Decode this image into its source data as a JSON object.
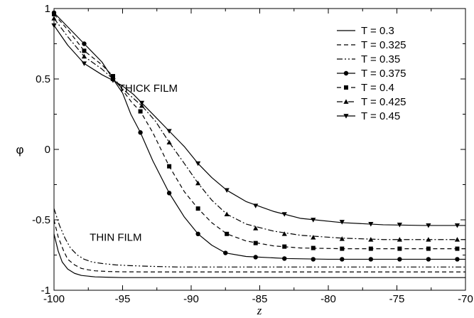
{
  "chart_data": {
    "type": "line",
    "xlabel": "z",
    "ylabel": "φ",
    "xlim": [
      -100,
      -70
    ],
    "ylim": [
      -1,
      1
    ],
    "xticks": [
      -100,
      -95,
      -90,
      -85,
      -80,
      -75,
      -70
    ],
    "yticks": [
      -1,
      -0.5,
      0,
      0.5,
      1
    ],
    "xtick_labels": [
      "-100",
      "-95",
      "-90",
      "-85",
      "-80",
      "-75",
      "-70"
    ],
    "ytick_labels": [
      "-1",
      "-0.5",
      "0",
      "0.5",
      "1"
    ],
    "legend_position": "top-right",
    "grid": false,
    "annotations": [
      {
        "text": "THICK FILM",
        "x": -95.3,
        "y": 0.41
      },
      {
        "text": "THIN FILM",
        "x": -97.4,
        "y": -0.65
      }
    ],
    "series": [
      {
        "name": "T = 0.3",
        "style": "solid",
        "marker": "none",
        "x": [
          -100,
          -99.7,
          -99.4,
          -99,
          -98.5,
          -98,
          -97.5,
          -97,
          -96,
          -95,
          -93,
          -90,
          -85,
          -80,
          -75,
          -70
        ],
        "y": [
          -0.6,
          -0.72,
          -0.8,
          -0.85,
          -0.88,
          -0.895,
          -0.9,
          -0.905,
          -0.908,
          -0.91,
          -0.91,
          -0.91,
          -0.91,
          -0.91,
          -0.91,
          -0.91
        ]
      },
      {
        "name": "T = 0.325",
        "style": "dashed",
        "marker": "none",
        "x": [
          -100,
          -99.7,
          -99.3,
          -99,
          -98.5,
          -98,
          -97.5,
          -97,
          -96,
          -95,
          -93,
          -90,
          -85,
          -80,
          -75,
          -70
        ],
        "y": [
          -0.5,
          -0.62,
          -0.72,
          -0.78,
          -0.82,
          -0.845,
          -0.855,
          -0.862,
          -0.867,
          -0.869,
          -0.87,
          -0.87,
          -0.87,
          -0.87,
          -0.87,
          -0.87
        ]
      },
      {
        "name": "T = 0.35",
        "style": "dashdotdot",
        "marker": "none",
        "x": [
          -100,
          -99.6,
          -99.2,
          -98.8,
          -98.3,
          -97.8,
          -97.2,
          -96.5,
          -95.5,
          -94.5,
          -93,
          -91,
          -88,
          -85,
          -80,
          -75,
          -70
        ],
        "y": [
          -0.42,
          -0.54,
          -0.63,
          -0.7,
          -0.75,
          -0.78,
          -0.8,
          -0.81,
          -0.82,
          -0.825,
          -0.83,
          -0.835,
          -0.835,
          -0.835,
          -0.835,
          -0.835,
          -0.835
        ]
      },
      {
        "name": "T = 0.375",
        "style": "solid",
        "marker": "circle",
        "x": [
          -100,
          -99,
          -97.8,
          -96.5,
          -95.7,
          -95,
          -94.4,
          -93.7,
          -92.8,
          -91.6,
          -90.5,
          -89.5,
          -88.5,
          -87.5,
          -86,
          -83,
          -80,
          -77,
          -74,
          -70
        ],
        "y": [
          0.97,
          0.87,
          0.75,
          0.62,
          0.5,
          0.4,
          0.25,
          0.12,
          -0.08,
          -0.31,
          -0.48,
          -0.6,
          -0.68,
          -0.735,
          -0.76,
          -0.775,
          -0.78,
          -0.78,
          -0.78,
          -0.78
        ],
        "marker_x": [
          -100,
          -97.8,
          -95.7,
          -93.7,
          -91.6,
          -89.5,
          -87.5,
          -85.3,
          -83.2,
          -81.1,
          -79,
          -76.9,
          -74.8,
          -72.7,
          -70.6
        ],
        "marker_y": [
          0.97,
          0.75,
          0.5,
          0.12,
          -0.31,
          -0.6,
          -0.735,
          -0.765,
          -0.775,
          -0.78,
          -0.78,
          -0.78,
          -0.78,
          -0.78,
          -0.78
        ]
      },
      {
        "name": "T = 0.4",
        "style": "dashed",
        "marker": "square",
        "x": [
          -100,
          -99,
          -97.8,
          -96.5,
          -95.7,
          -95,
          -94.3,
          -93.7,
          -92.8,
          -91.6,
          -90.5,
          -89.5,
          -88.5,
          -87.4,
          -86,
          -84,
          -82,
          -79,
          -76,
          -73,
          -70
        ],
        "y": [
          0.96,
          0.85,
          0.7,
          0.6,
          0.52,
          0.42,
          0.33,
          0.27,
          0.12,
          -0.12,
          -0.3,
          -0.42,
          -0.52,
          -0.6,
          -0.65,
          -0.685,
          -0.7,
          -0.705,
          -0.705,
          -0.705,
          -0.705
        ],
        "marker_x": [
          -100,
          -97.8,
          -95.7,
          -93.7,
          -91.6,
          -89.5,
          -87.4,
          -85.3,
          -83.2,
          -81.1,
          -79,
          -76.9,
          -74.8,
          -72.7,
          -70.6
        ],
        "marker_y": [
          0.96,
          0.7,
          0.52,
          0.27,
          -0.12,
          -0.42,
          -0.6,
          -0.665,
          -0.69,
          -0.7,
          -0.705,
          -0.705,
          -0.705,
          -0.705,
          -0.705
        ]
      },
      {
        "name": "T = 0.425",
        "style": "dashdot",
        "marker": "triangle-up",
        "x": [
          -100,
          -99,
          -97.8,
          -96.5,
          -95.7,
          -95,
          -94.3,
          -93.6,
          -92.6,
          -91.6,
          -90.5,
          -89.5,
          -88.5,
          -87.4,
          -86,
          -84,
          -82,
          -79,
          -76,
          -73,
          -70
        ],
        "y": [
          0.93,
          0.8,
          0.66,
          0.57,
          0.5,
          0.43,
          0.37,
          0.31,
          0.2,
          0.05,
          -0.1,
          -0.24,
          -0.36,
          -0.46,
          -0.53,
          -0.58,
          -0.61,
          -0.63,
          -0.64,
          -0.64,
          -0.64
        ],
        "marker_x": [
          -100,
          -97.8,
          -95.7,
          -93.6,
          -91.6,
          -89.5,
          -87.4,
          -85.3,
          -83.2,
          -81.1,
          -79,
          -76.9,
          -74.8,
          -72.7,
          -70.6
        ],
        "marker_y": [
          0.93,
          0.66,
          0.5,
          0.31,
          0.05,
          -0.24,
          -0.46,
          -0.56,
          -0.6,
          -0.625,
          -0.635,
          -0.64,
          -0.64,
          -0.64,
          -0.64
        ]
      },
      {
        "name": "T = 0.45",
        "style": "solid",
        "marker": "triangle-down",
        "x": [
          -100,
          -99,
          -97.8,
          -96.5,
          -95.7,
          -95,
          -94.2,
          -93.6,
          -92.6,
          -91.6,
          -90.5,
          -89.5,
          -88.5,
          -87.4,
          -86,
          -84,
          -82,
          -79,
          -76,
          -73,
          -70
        ],
        "y": [
          0.88,
          0.74,
          0.61,
          0.53,
          0.49,
          0.45,
          0.39,
          0.33,
          0.23,
          0.13,
          0.02,
          -0.1,
          -0.2,
          -0.29,
          -0.37,
          -0.44,
          -0.49,
          -0.52,
          -0.535,
          -0.54,
          -0.54
        ],
        "marker_x": [
          -100,
          -97.8,
          -95.7,
          -93.6,
          -91.6,
          -89.5,
          -87.4,
          -85.3,
          -83.2,
          -81.1,
          -79,
          -76.9,
          -74.8,
          -72.7,
          -70.6
        ],
        "marker_y": [
          0.88,
          0.61,
          0.49,
          0.33,
          0.13,
          -0.1,
          -0.29,
          -0.4,
          -0.46,
          -0.5,
          -0.515,
          -0.53,
          -0.535,
          -0.54,
          -0.54
        ]
      }
    ]
  }
}
